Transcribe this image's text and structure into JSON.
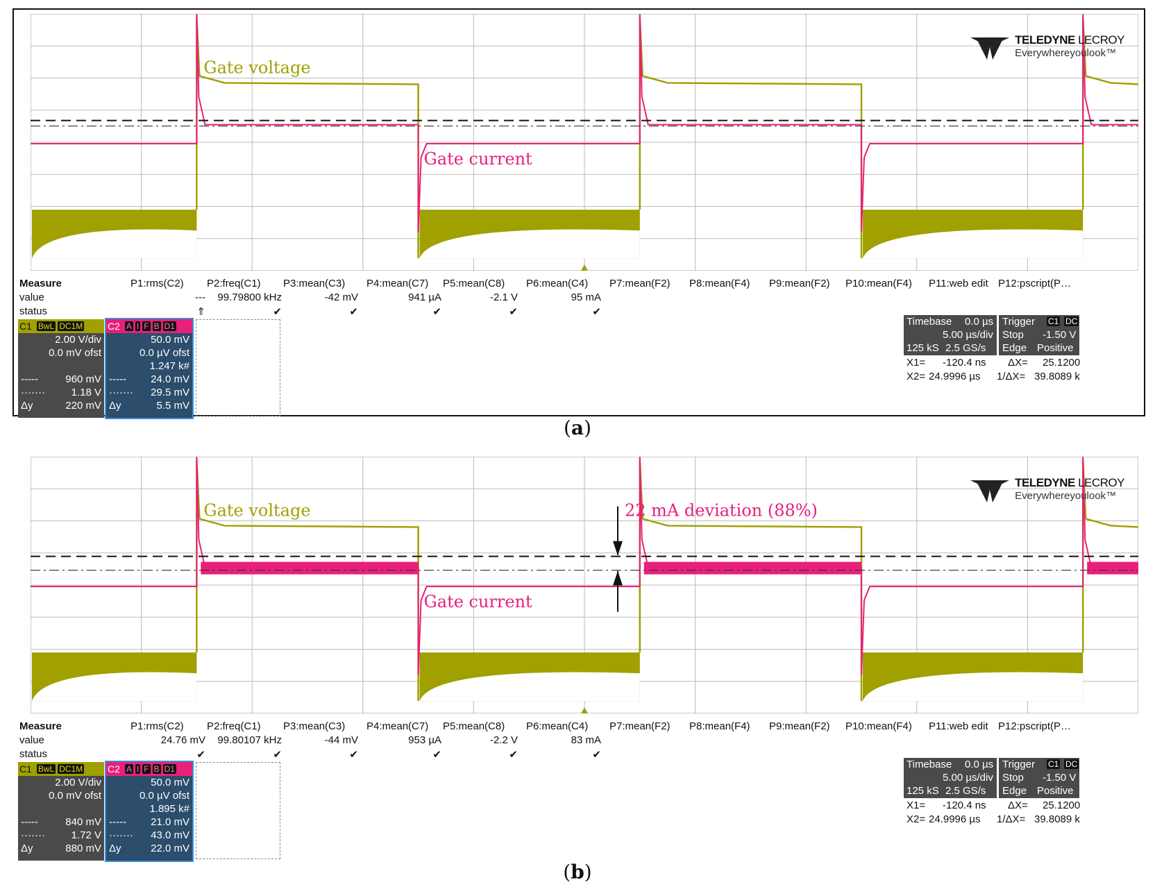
{
  "colors": {
    "c1": "#a0a000",
    "c2": "#e8207a",
    "grid": "#bbbbbb",
    "c1_dark": "#8f9000"
  },
  "captions": {
    "a": "a",
    "b": "b"
  },
  "brand": {
    "name_bold": "TELEDYNE",
    "name_thin": " LECROY",
    "tagline": "Everywhereyoulook™"
  },
  "chart_data": [
    {
      "type": "line",
      "title": "(a)",
      "x_divisions": 10,
      "y_divisions": 8,
      "timebase": "5.00 µs/div",
      "period_us": 20,
      "duty": 0.5,
      "series": [
        {
          "name": "Gate voltage",
          "channel": "C1",
          "scale": "2.00 V/div",
          "offset": "0.0 mV ofst",
          "high_level_div": 1.85,
          "low_level_div": -2.1
        },
        {
          "name": "Gate current",
          "channel": "C2",
          "scale": "50.0 mV",
          "offset": "0.0 µV ofst",
          "positive_plateau_div": 0.55,
          "negative_plateau_div": -0.0,
          "spread": "thin"
        }
      ],
      "cursor_levels_mV": [
        960,
        1180
      ],
      "labels": [
        {
          "text": "Gate voltage"
        },
        {
          "text": "Gate current"
        }
      ],
      "annotation": null
    },
    {
      "type": "line",
      "title": "(b)",
      "x_divisions": 10,
      "y_divisions": 8,
      "timebase": "5.00 µs/div",
      "period_us": 20,
      "duty": 0.5,
      "series": [
        {
          "name": "Gate voltage",
          "channel": "C1",
          "scale": "2.00 V/div",
          "offset": "0.0 mV ofst",
          "high_level_div": 1.85,
          "low_level_div": -2.1
        },
        {
          "name": "Gate current",
          "channel": "C2",
          "scale": "50.0 mV",
          "offset": "0.0 µV ofst",
          "positive_plateau_div": 0.55,
          "negative_plateau_div": -0.0,
          "spread": "wide"
        }
      ],
      "cursor_levels_mV": [
        840,
        1720
      ],
      "labels": [
        {
          "text": "Gate voltage"
        },
        {
          "text": "Gate current"
        }
      ],
      "annotation": {
        "text": "22 mA deviation (88%)"
      }
    }
  ],
  "panels": [
    {
      "measure": {
        "headers": [
          "Measure",
          "P1:rms(C2)",
          "P2:freq(C1)",
          "P3:mean(C3)",
          "P4:mean(C7)",
          "P5:mean(C8)",
          "P6:mean(C4)",
          "P7:mean(F2)",
          "P8:mean(F4)",
          "P9:mean(F2)",
          "P10:mean(F4)",
          "P11:web edit",
          "P12:pscript(P…"
        ],
        "values": [
          "value",
          "---",
          "99.79800 kHz",
          "-42 mV",
          "941 µA",
          "-2.1 V",
          "95 mA"
        ],
        "status": [
          "status",
          "⇑",
          "✔",
          "✔",
          "✔",
          "✔",
          "✔"
        ]
      },
      "c1": {
        "label": "C1",
        "chips": [
          "BwL",
          "DC1M"
        ],
        "lines": [
          [
            "",
            "2.00 V/div"
          ],
          [
            "",
            "0.0 mV ofst"
          ],
          [
            "",
            ""
          ],
          [
            "-----",
            "960 mV"
          ],
          [
            "·······",
            "1.18 V"
          ],
          [
            "Δy",
            "220 mV"
          ]
        ]
      },
      "c2": {
        "label": "C2",
        "chips": [
          "A",
          "I",
          "F",
          "B",
          "D1"
        ],
        "lines": [
          [
            "",
            "50.0 mV"
          ],
          [
            "",
            "0.0 µV ofst"
          ],
          [
            "",
            "1.247 k#"
          ],
          [
            "-----",
            "24.0 mV"
          ],
          [
            "·······",
            "29.5 mV"
          ],
          [
            "Δy",
            "5.5 mV"
          ]
        ]
      },
      "timebase": {
        "title": "Timebase",
        "tval": "0.0 µs",
        "div": "5.00 µs/div",
        "samples": "125 kS",
        "rate": "2.5 GS/s",
        "trigger": "Trigger",
        "tchips": [
          "C1",
          "DC"
        ],
        "stop": "Stop",
        "level": "-1.50 V",
        "edge": "Edge",
        "slope": "Positive"
      },
      "cursors": {
        "x1l": "X1=",
        "x1": "-120.4 ns",
        "dxl": "ΔX=",
        "dx": "25.1200",
        "x2l": "X2=",
        "x2": "24.9996 µs",
        "idxl": "1/ΔX=",
        "idx": "39.8089 k"
      }
    },
    {
      "measure": {
        "headers": [
          "Measure",
          "P1:rms(C2)",
          "P2:freq(C1)",
          "P3:mean(C3)",
          "P4:mean(C7)",
          "P5:mean(C8)",
          "P6:mean(C4)",
          "P7:mean(F2)",
          "P8:mean(F4)",
          "P9:mean(F2)",
          "P10:mean(F4)",
          "P11:web edit",
          "P12:pscript(P…"
        ],
        "values": [
          "value",
          "24.76 mV",
          "99.80107 kHz",
          "-44 mV",
          "953 µA",
          "-2.2 V",
          "83 mA"
        ],
        "status": [
          "status",
          "✔",
          "✔",
          "✔",
          "✔",
          "✔",
          "✔"
        ]
      },
      "c1": {
        "label": "C1",
        "chips": [
          "BwL",
          "DC1M"
        ],
        "lines": [
          [
            "",
            "2.00 V/div"
          ],
          [
            "",
            "0.0 mV ofst"
          ],
          [
            "",
            ""
          ],
          [
            "-----",
            "840 mV"
          ],
          [
            "·······",
            "1.72 V"
          ],
          [
            "Δy",
            "880 mV"
          ]
        ]
      },
      "c2": {
        "label": "C2",
        "chips": [
          "A",
          "I",
          "F",
          "B",
          "D1"
        ],
        "lines": [
          [
            "",
            "50.0 mV"
          ],
          [
            "",
            "0.0 µV ofst"
          ],
          [
            "",
            "1.895 k#"
          ],
          [
            "-----",
            "21.0 mV"
          ],
          [
            "·······",
            "43.0 mV"
          ],
          [
            "Δy",
            "22.0 mV"
          ]
        ]
      },
      "timebase": {
        "title": "Timebase",
        "tval": "0.0 µs",
        "div": "5.00 µs/div",
        "samples": "125 kS",
        "rate": "2.5 GS/s",
        "trigger": "Trigger",
        "tchips": [
          "C1",
          "DC"
        ],
        "stop": "Stop",
        "level": "-1.50 V",
        "edge": "Edge",
        "slope": "Positive"
      },
      "cursors": {
        "x1l": "X1=",
        "x1": "-120.4 ns",
        "dxl": "ΔX=",
        "dx": "25.1200",
        "x2l": "X2=",
        "x2": "24.9996 µs",
        "idxl": "1/ΔX=",
        "idx": "39.8089 k"
      }
    }
  ]
}
